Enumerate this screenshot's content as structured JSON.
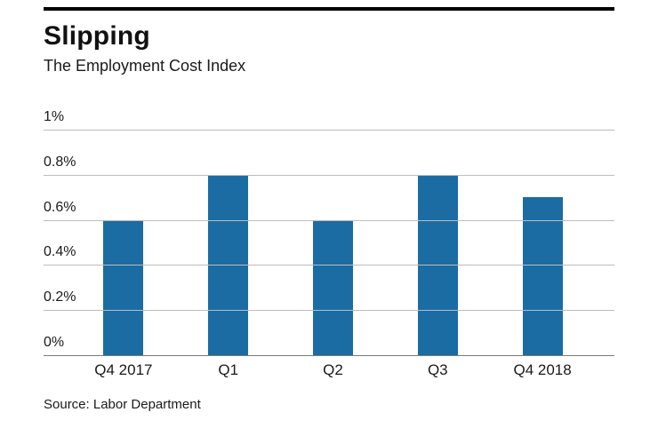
{
  "chart_data": {
    "type": "bar",
    "title": "Slipping",
    "subtitle": "The Employment Cost Index",
    "source": "Source: Labor Department",
    "categories": [
      "Q4 2017",
      "Q1",
      "Q2",
      "Q3",
      "Q4 2018"
    ],
    "values": [
      0.6,
      0.8,
      0.6,
      0.8,
      0.7
    ],
    "xlabel": "",
    "ylabel": "",
    "ylim": [
      0,
      1
    ],
    "yticks": [
      0,
      0.2,
      0.4,
      0.6,
      0.8,
      1
    ],
    "ytick_labels": [
      "0%",
      "0.2%",
      "0.4%",
      "0.6%",
      "0.8%",
      "1%"
    ],
    "grid": true,
    "legend": "none",
    "bar_color": "#1b6ca3",
    "grid_color": "#bcbcbc",
    "baseline_color": "#7a7a7a",
    "top_rule_color": "#000000"
  }
}
